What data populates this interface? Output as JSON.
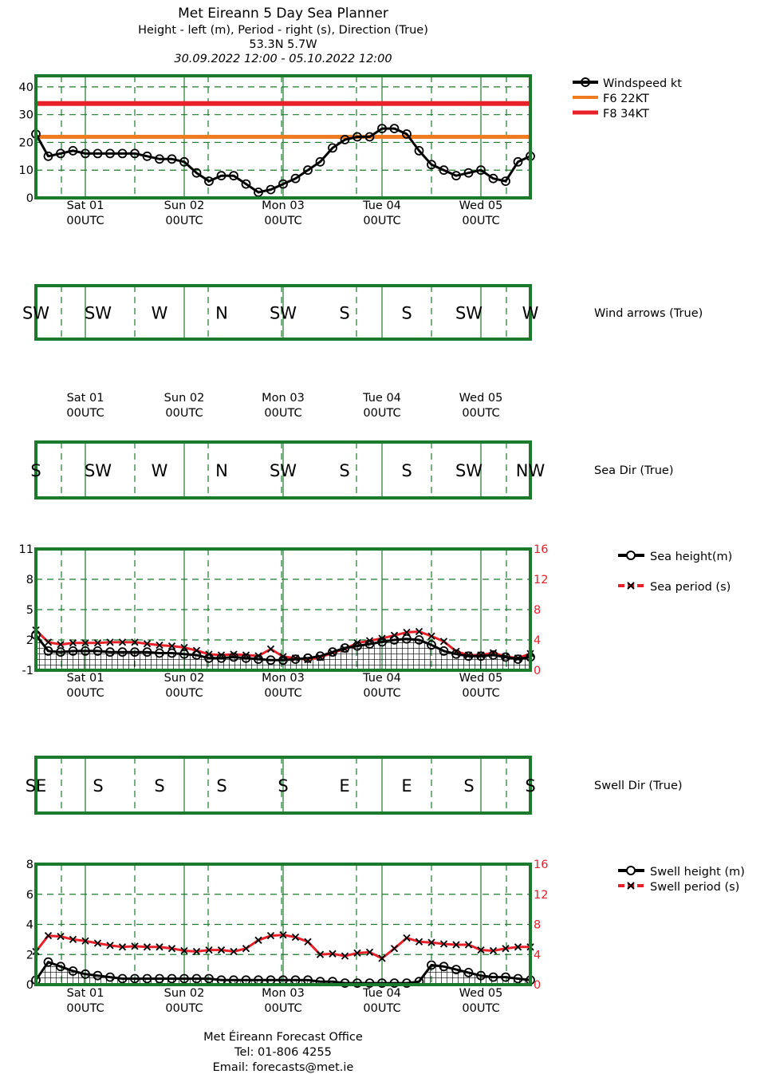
{
  "header": {
    "title": "Met Eireann 5 Day Sea Planner",
    "subtitle": "Height - left (m), Period - right (s), Direction (True)",
    "location": "53.3N 5.7W",
    "period": "30.09.2022 12:00 - 05.10.2022 12:00"
  },
  "footer": {
    "office": "Met Éireann Forecast Office",
    "tel": "Tel: 01-806 4255",
    "email": "Email: forecasts@met.ie"
  },
  "day_labels": [
    {
      "day": "Sat 01",
      "time": "00UTC"
    },
    {
      "day": "Sun 02",
      "time": "00UTC"
    },
    {
      "day": "Mon 03",
      "time": "00UTC"
    },
    {
      "day": "Tue 04",
      "time": "00UTC"
    },
    {
      "day": "Wed 05",
      "time": "00UTC"
    }
  ],
  "colors": {
    "frame": "#1b7a2c",
    "grid": "#1b7a2c",
    "series_black": "#000000",
    "period_red": "#e8202a",
    "f6_orange": "#f07c22",
    "f8_red": "#e8202a",
    "axis_right_red": "#e8202a"
  },
  "chart_data": [
    {
      "type": "line",
      "id": "wind",
      "x_start": "30.09.2022 12:00",
      "x_end": "05.10.2022 12:00",
      "x_step_hours": 3,
      "ylim": [
        0,
        44
      ],
      "yticks": [
        0,
        10,
        20,
        30,
        40
      ],
      "grid": true,
      "legend": "right",
      "series": [
        {
          "name": "Windspeed kt",
          "values": [
            23,
            15,
            16,
            17,
            16,
            16,
            16,
            16,
            16,
            15,
            14,
            14,
            13,
            9,
            6,
            8,
            8,
            5,
            2,
            3,
            5,
            7,
            10,
            13,
            18,
            21,
            22,
            22,
            25,
            25,
            23,
            17,
            12,
            10,
            8,
            9,
            10,
            7,
            6,
            13,
            15
          ]
        },
        {
          "name": "F6 22KT",
          "value": 22
        },
        {
          "name": "F8 34KT",
          "value": 34
        }
      ]
    },
    {
      "type": "table",
      "id": "wind_dir",
      "label": "Wind arrows (True)",
      "values": [
        "SW",
        "SW",
        "W",
        "N",
        "SW",
        "S",
        "S",
        "SW",
        "W"
      ]
    },
    {
      "type": "table",
      "id": "sea_dir",
      "label": "Sea Dir (True)",
      "values": [
        "S",
        "SW",
        "W",
        "N",
        "SW",
        "S",
        "S",
        "SW",
        "NW"
      ]
    },
    {
      "type": "line",
      "id": "sea",
      "ylim": [
        -1,
        11
      ],
      "yticks": [
        -1,
        2,
        5,
        8,
        11
      ],
      "y2lim": [
        0,
        16
      ],
      "y2ticks": [
        0,
        4,
        8,
        12,
        16
      ],
      "grid": true,
      "legend": "right",
      "series": [
        {
          "name": "Sea height(m)",
          "values": [
            2.5,
            0.9,
            0.8,
            0.9,
            0.9,
            0.9,
            0.8,
            0.8,
            0.8,
            0.8,
            0.7,
            0.7,
            0.6,
            0.5,
            0.2,
            0.2,
            0.3,
            0.2,
            0.1,
            0.0,
            0.0,
            0.1,
            0.2,
            0.4,
            0.8,
            1.2,
            1.4,
            1.6,
            1.8,
            2.0,
            2.1,
            2.0,
            1.5,
            0.9,
            0.6,
            0.4,
            0.4,
            0.5,
            0.3,
            0.1,
            0.3
          ]
        },
        {
          "name": "Sea period (s)",
          "values": [
            5.3,
            3.7,
            3.4,
            3.6,
            3.6,
            3.6,
            3.7,
            3.7,
            3.7,
            3.5,
            3.3,
            3.2,
            3.0,
            2.6,
            2.1,
            2.0,
            2.1,
            2.0,
            1.9,
            2.8,
            1.8,
            1.6,
            1.4,
            1.7,
            2.3,
            2.8,
            3.6,
            3.9,
            4.2,
            4.6,
            5.0,
            5.1,
            4.5,
            3.8,
            2.5,
            2.0,
            2.0,
            2.3,
            1.8,
            1.6,
            2.2
          ]
        }
      ]
    },
    {
      "type": "table",
      "id": "swell_dir",
      "label": "Swell Dir (True)",
      "values": [
        "SE",
        "S",
        "S",
        "S",
        "S",
        "E",
        "E",
        "S",
        "S"
      ]
    },
    {
      "type": "line",
      "id": "swell",
      "ylim": [
        0,
        8
      ],
      "yticks": [
        0,
        2,
        4,
        6,
        8
      ],
      "y2lim": [
        0,
        16
      ],
      "y2ticks": [
        0,
        4,
        8,
        12,
        16
      ],
      "grid": true,
      "legend": "right",
      "series": [
        {
          "name": "Swell height (m)",
          "values": [
            0.3,
            1.5,
            1.2,
            0.9,
            0.7,
            0.6,
            0.5,
            0.4,
            0.4,
            0.4,
            0.4,
            0.4,
            0.4,
            0.4,
            0.4,
            0.3,
            0.3,
            0.3,
            0.3,
            0.3,
            0.3,
            0.3,
            0.3,
            0.2,
            0.2,
            0.1,
            0.1,
            0.1,
            0.1,
            0.1,
            0.1,
            0.2,
            1.3,
            1.2,
            1.0,
            0.8,
            0.6,
            0.5,
            0.5,
            0.4,
            0.3
          ]
        },
        {
          "name": "Swell period (s)",
          "values": [
            4.4,
            6.5,
            6.4,
            6.0,
            5.8,
            5.5,
            5.2,
            5.0,
            5.1,
            5.0,
            5.0,
            4.8,
            4.5,
            4.4,
            4.6,
            4.6,
            4.4,
            4.8,
            5.9,
            6.5,
            6.6,
            6.3,
            5.7,
            4.0,
            4.1,
            3.8,
            4.2,
            4.3,
            3.5,
            4.8,
            6.2,
            5.7,
            5.6,
            5.4,
            5.3,
            5.3,
            4.6,
            4.5,
            4.8,
            5.0,
            5.0
          ]
        }
      ]
    }
  ]
}
